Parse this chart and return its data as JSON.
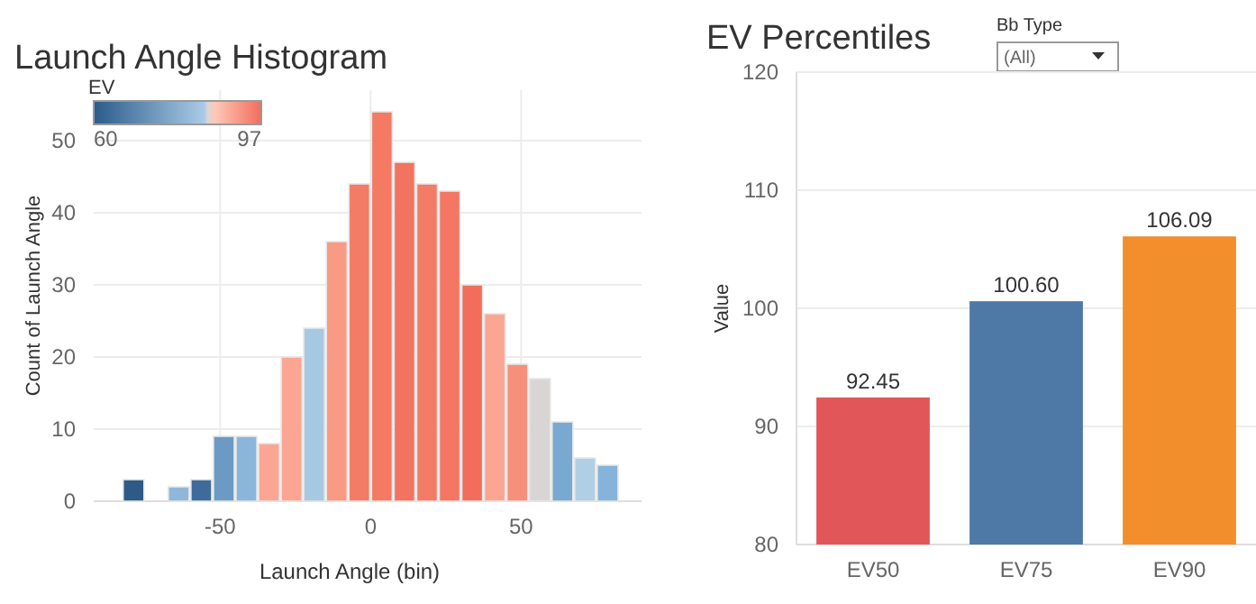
{
  "chart_data": [
    {
      "type": "histogram",
      "title": "Launch Angle Histogram",
      "xlabel": "Launch Angle (bin)",
      "ylabel": "Count of Launch Angle",
      "clabel": "EV",
      "annotations": [
        "60",
        "97"
      ],
      "bins": [
        -82.5,
        -75,
        -67.5,
        -60,
        -52.5,
        -45,
        -37.5,
        -30,
        -22.5,
        -15,
        -7.5,
        0,
        7.5,
        15,
        22.5,
        30,
        37.5,
        45,
        52.5,
        60,
        67.5,
        75,
        82.5
      ],
      "values": [
        3,
        0,
        2,
        3,
        9,
        9,
        8,
        20,
        24,
        36,
        44,
        54,
        47,
        44,
        43,
        30,
        26,
        19,
        17,
        11,
        6,
        5
      ],
      "colors": [
        "#2e5a87",
        "#2e5a87",
        "#8fb7da",
        "#3f6b9a",
        "#6b9ac4",
        "#8ab6dc",
        "#fca592",
        "#fca592",
        "#a6c9e2",
        "#f89a84",
        "#f47b65",
        "#f47a64",
        "#f27360",
        "#f47b65",
        "#f47663",
        "#f26d5b",
        "#fca592",
        "#f7907a",
        "#d9d5d5",
        "#79a9d0",
        "#b0cfe4",
        "#86b3d9"
      ],
      "xlim": [
        -92,
        90
      ],
      "xticks": [
        -50,
        0,
        50
      ],
      "ylim": [
        0,
        57
      ],
      "yticks": [
        0,
        10,
        20,
        30,
        40,
        50
      ],
      "grid": true
    },
    {
      "type": "bar",
      "title": "EV Percentiles",
      "ylabel": "Value",
      "annotations": [
        "Bb Type",
        "(All)"
      ],
      "categories": [
        "EV50",
        "EV75",
        "EV90"
      ],
      "values": [
        92.45,
        100.6,
        106.09
      ],
      "colors": [
        "#e15759",
        "#4e79a7",
        "#f28e2b"
      ],
      "value_labels": [
        "92.45",
        "100.60",
        "106.09"
      ],
      "ylim": [
        80,
        120
      ],
      "yticks": [
        80,
        90,
        100,
        110,
        120
      ],
      "grid": "y"
    }
  ]
}
